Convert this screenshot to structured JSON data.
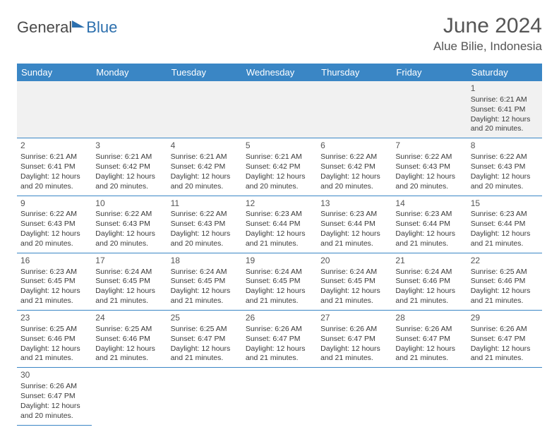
{
  "logo": {
    "part1": "General",
    "part2": "Blue"
  },
  "title": "June 2024",
  "location": "Alue Bilie, Indonesia",
  "colors": {
    "header_bg": "#3a86c5",
    "header_fg": "#ffffff",
    "grid_line": "#3a86c5",
    "empty_bg": "#f1f1f1",
    "text": "#3a3a3a"
  },
  "day_headers": [
    "Sunday",
    "Monday",
    "Tuesday",
    "Wednesday",
    "Thursday",
    "Friday",
    "Saturday"
  ],
  "weeks": [
    [
      null,
      null,
      null,
      null,
      null,
      null,
      {
        "n": "1",
        "sr": "6:21 AM",
        "ss": "6:41 PM",
        "dl": "12 hours and 20 minutes."
      }
    ],
    [
      {
        "n": "2",
        "sr": "6:21 AM",
        "ss": "6:41 PM",
        "dl": "12 hours and 20 minutes."
      },
      {
        "n": "3",
        "sr": "6:21 AM",
        "ss": "6:42 PM",
        "dl": "12 hours and 20 minutes."
      },
      {
        "n": "4",
        "sr": "6:21 AM",
        "ss": "6:42 PM",
        "dl": "12 hours and 20 minutes."
      },
      {
        "n": "5",
        "sr": "6:21 AM",
        "ss": "6:42 PM",
        "dl": "12 hours and 20 minutes."
      },
      {
        "n": "6",
        "sr": "6:22 AM",
        "ss": "6:42 PM",
        "dl": "12 hours and 20 minutes."
      },
      {
        "n": "7",
        "sr": "6:22 AM",
        "ss": "6:43 PM",
        "dl": "12 hours and 20 minutes."
      },
      {
        "n": "8",
        "sr": "6:22 AM",
        "ss": "6:43 PM",
        "dl": "12 hours and 20 minutes."
      }
    ],
    [
      {
        "n": "9",
        "sr": "6:22 AM",
        "ss": "6:43 PM",
        "dl": "12 hours and 20 minutes."
      },
      {
        "n": "10",
        "sr": "6:22 AM",
        "ss": "6:43 PM",
        "dl": "12 hours and 20 minutes."
      },
      {
        "n": "11",
        "sr": "6:22 AM",
        "ss": "6:43 PM",
        "dl": "12 hours and 20 minutes."
      },
      {
        "n": "12",
        "sr": "6:23 AM",
        "ss": "6:44 PM",
        "dl": "12 hours and 21 minutes."
      },
      {
        "n": "13",
        "sr": "6:23 AM",
        "ss": "6:44 PM",
        "dl": "12 hours and 21 minutes."
      },
      {
        "n": "14",
        "sr": "6:23 AM",
        "ss": "6:44 PM",
        "dl": "12 hours and 21 minutes."
      },
      {
        "n": "15",
        "sr": "6:23 AM",
        "ss": "6:44 PM",
        "dl": "12 hours and 21 minutes."
      }
    ],
    [
      {
        "n": "16",
        "sr": "6:23 AM",
        "ss": "6:45 PM",
        "dl": "12 hours and 21 minutes."
      },
      {
        "n": "17",
        "sr": "6:24 AM",
        "ss": "6:45 PM",
        "dl": "12 hours and 21 minutes."
      },
      {
        "n": "18",
        "sr": "6:24 AM",
        "ss": "6:45 PM",
        "dl": "12 hours and 21 minutes."
      },
      {
        "n": "19",
        "sr": "6:24 AM",
        "ss": "6:45 PM",
        "dl": "12 hours and 21 minutes."
      },
      {
        "n": "20",
        "sr": "6:24 AM",
        "ss": "6:45 PM",
        "dl": "12 hours and 21 minutes."
      },
      {
        "n": "21",
        "sr": "6:24 AM",
        "ss": "6:46 PM",
        "dl": "12 hours and 21 minutes."
      },
      {
        "n": "22",
        "sr": "6:25 AM",
        "ss": "6:46 PM",
        "dl": "12 hours and 21 minutes."
      }
    ],
    [
      {
        "n": "23",
        "sr": "6:25 AM",
        "ss": "6:46 PM",
        "dl": "12 hours and 21 minutes."
      },
      {
        "n": "24",
        "sr": "6:25 AM",
        "ss": "6:46 PM",
        "dl": "12 hours and 21 minutes."
      },
      {
        "n": "25",
        "sr": "6:25 AM",
        "ss": "6:47 PM",
        "dl": "12 hours and 21 minutes."
      },
      {
        "n": "26",
        "sr": "6:26 AM",
        "ss": "6:47 PM",
        "dl": "12 hours and 21 minutes."
      },
      {
        "n": "27",
        "sr": "6:26 AM",
        "ss": "6:47 PM",
        "dl": "12 hours and 21 minutes."
      },
      {
        "n": "28",
        "sr": "6:26 AM",
        "ss": "6:47 PM",
        "dl": "12 hours and 21 minutes."
      },
      {
        "n": "29",
        "sr": "6:26 AM",
        "ss": "6:47 PM",
        "dl": "12 hours and 21 minutes."
      }
    ],
    [
      {
        "n": "30",
        "sr": "6:26 AM",
        "ss": "6:47 PM",
        "dl": "12 hours and 20 minutes."
      },
      null,
      null,
      null,
      null,
      null,
      null
    ]
  ],
  "labels": {
    "sunrise": "Sunrise:",
    "sunset": "Sunset:",
    "daylight": "Daylight:"
  }
}
